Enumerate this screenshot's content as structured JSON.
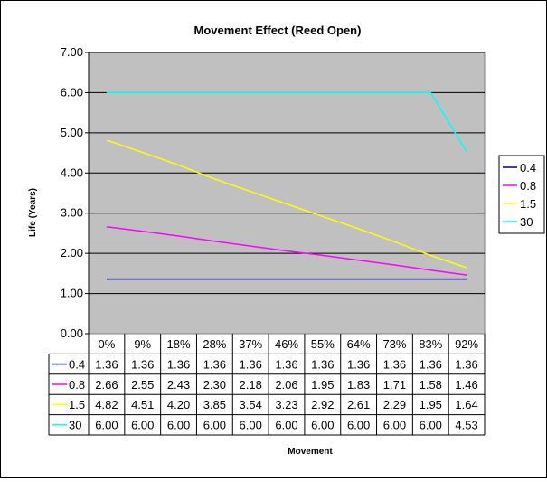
{
  "chart_data": {
    "type": "line",
    "title": "Movement Effect (Reed Open)",
    "xlabel": "Movement",
    "ylabel": "Life (Years)",
    "ylim": [
      0,
      7
    ],
    "yticks": [
      "0.00",
      "1.00",
      "2.00",
      "3.00",
      "4.00",
      "5.00",
      "6.00",
      "7.00"
    ],
    "categories": [
      "0%",
      "9%",
      "18%",
      "28%",
      "37%",
      "46%",
      "55%",
      "64%",
      "73%",
      "83%",
      "92%"
    ],
    "grid": true,
    "legend_placement": "right",
    "plot_background": "#c0c0c0",
    "series": [
      {
        "name": "0.4",
        "color": "#000080",
        "values": [
          1.36,
          1.36,
          1.36,
          1.36,
          1.36,
          1.36,
          1.36,
          1.36,
          1.36,
          1.36,
          1.36
        ]
      },
      {
        "name": "0.8",
        "color": "#ff00ff",
        "values": [
          2.66,
          2.55,
          2.43,
          2.3,
          2.18,
          2.06,
          1.95,
          1.83,
          1.71,
          1.58,
          1.46
        ]
      },
      {
        "name": "1.5",
        "color": "#ffff00",
        "values": [
          4.82,
          4.51,
          4.2,
          3.85,
          3.54,
          3.23,
          2.92,
          2.61,
          2.29,
          1.95,
          1.64
        ]
      },
      {
        "name": "30",
        "color": "#00ffff",
        "values": [
          6.0,
          6.0,
          6.0,
          6.0,
          6.0,
          6.0,
          6.0,
          6.0,
          6.0,
          6.0,
          4.53
        ]
      }
    ],
    "table": [
      {
        "label": "0.4",
        "cells": [
          "1.36",
          "1.36",
          "1.36",
          "1.36",
          "1.36",
          "1.36",
          "1.36",
          "1.36",
          "1.36",
          "1.36",
          "1.36"
        ]
      },
      {
        "label": "0.8",
        "cells": [
          "2.66",
          "2.55",
          "2.43",
          "2.30",
          "2.18",
          "2.06",
          "1.95",
          "1.83",
          "1.71",
          "1.58",
          "1.46"
        ]
      },
      {
        "label": "1.5",
        "cells": [
          "4.82",
          "4.51",
          "4.20",
          "3.85",
          "3.54",
          "3.23",
          "2.92",
          "2.61",
          "2.29",
          "1.95",
          "1.64"
        ]
      },
      {
        "label": "30",
        "cells": [
          "6.00",
          "6.00",
          "6.00",
          "6.00",
          "6.00",
          "6.00",
          "6.00",
          "6.00",
          "6.00",
          "6.00",
          "4.53"
        ]
      }
    ]
  }
}
